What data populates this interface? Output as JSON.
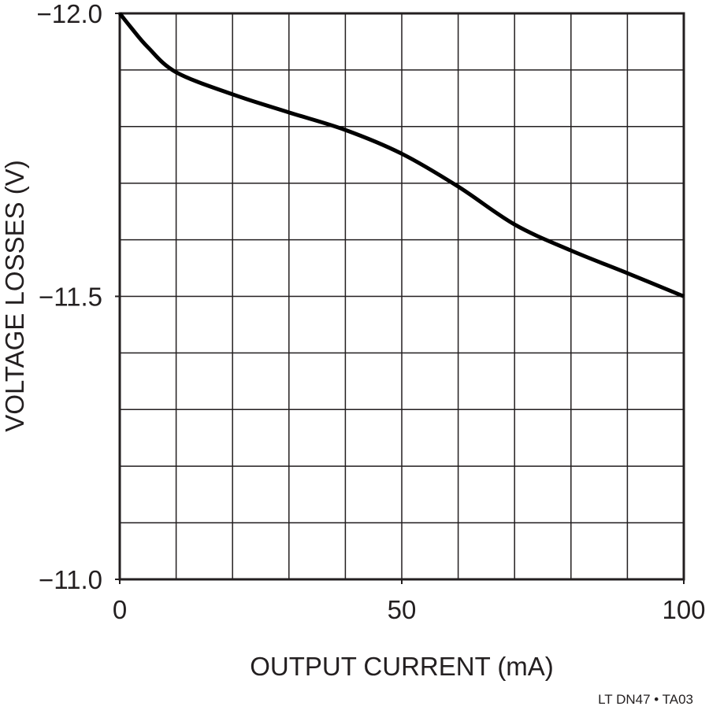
{
  "chart_data": {
    "type": "line",
    "x_label": "OUTPUT CURRENT (mA)",
    "y_label": "VOLTAGE LOSSES (V)",
    "footnote": "LT DN47 • TA03",
    "x": [
      0,
      2,
      5,
      10,
      20,
      30,
      40,
      50,
      60,
      70,
      80,
      90,
      100
    ],
    "series": [
      {
        "color": "#000000",
        "values": [
          -12.0,
          -11.975,
          -11.94,
          -11.896,
          -11.857,
          -11.825,
          -11.794,
          -11.752,
          -11.694,
          -11.627,
          -11.581,
          -11.541,
          -11.5
        ]
      }
    ],
    "xlim": [
      0,
      100
    ],
    "ylim": [
      -11.0,
      -12.0
    ],
    "xticks": [
      0,
      50,
      100
    ],
    "yticks": [
      {
        "value": -12.0,
        "label": "−12.0"
      },
      {
        "value": -11.5,
        "label": "−11.5"
      },
      {
        "value": -11.0,
        "label": "−11.0"
      }
    ],
    "xgrid": [
      10,
      20,
      30,
      40,
      50,
      60,
      70,
      80,
      90
    ],
    "ygrid": [
      -11.9,
      -11.8,
      -11.7,
      -11.6,
      -11.5,
      -11.4,
      -11.3,
      -11.2,
      -11.1
    ],
    "grid": true
  }
}
